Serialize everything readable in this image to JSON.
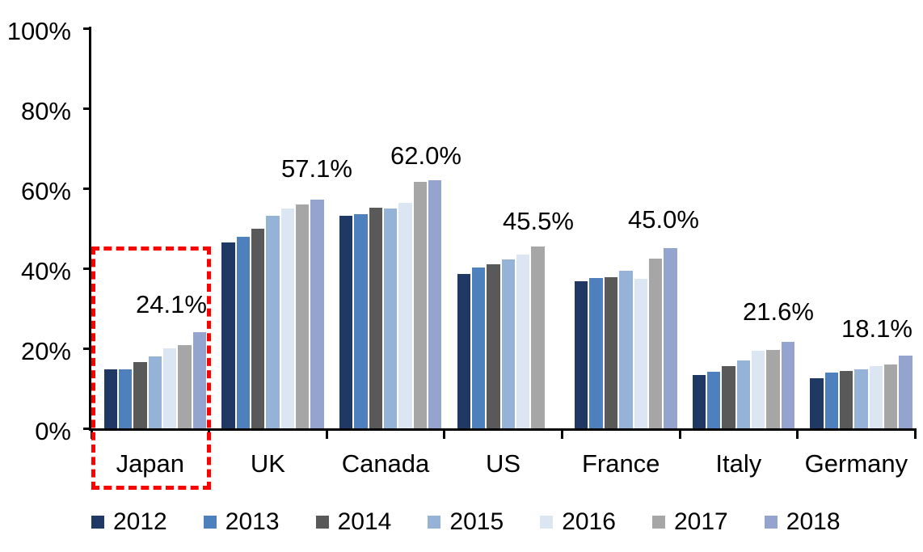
{
  "chart_data": {
    "type": "bar",
    "title": "",
    "xlabel": "",
    "ylabel": "",
    "categories": [
      "Japan",
      "UK",
      "Canada",
      "US",
      "France",
      "Italy",
      "Germany"
    ],
    "series": [
      {
        "name": "2012",
        "color": "#1F3864",
        "values": [
          14.7,
          46.5,
          53.1,
          38.5,
          36.7,
          13.3,
          12.6
        ]
      },
      {
        "name": "2013",
        "color": "#4E80BD",
        "values": [
          14.8,
          47.9,
          53.5,
          40.2,
          37.6,
          14.2,
          13.9
        ]
      },
      {
        "name": "2014",
        "color": "#595959",
        "values": [
          16.5,
          49.9,
          55.1,
          41.1,
          37.7,
          15.6,
          14.3
        ]
      },
      {
        "name": "2015",
        "color": "#95B3D7",
        "values": [
          18.0,
          53.2,
          54.9,
          42.3,
          39.3,
          17.0,
          14.7
        ]
      },
      {
        "name": "2016",
        "color": "#DCE6F2",
        "values": [
          20.0,
          54.9,
          56.3,
          43.5,
          37.3,
          19.3,
          15.5
        ]
      },
      {
        "name": "2017",
        "color": "#A6A6A6",
        "values": [
          20.9,
          56.0,
          61.6,
          45.5,
          42.4,
          19.5,
          16.0
        ]
      },
      {
        "name": "2018",
        "color": "#95A4CE",
        "values": [
          24.1,
          57.1,
          62.0,
          null,
          45.0,
          21.6,
          18.1
        ]
      }
    ],
    "data_labels": [
      "24.1%",
      "57.1%",
      "62.0%",
      "45.5%",
      "45.0%",
      "21.6%",
      "18.1%"
    ],
    "y_axis": {
      "min": 0,
      "max": 100,
      "tick_values": [
        0,
        20,
        40,
        60,
        80,
        100
      ],
      "tick_labels": [
        "0%",
        "20%",
        "40%",
        "60%",
        "80%",
        "100%"
      ]
    },
    "legend": {
      "position": "bottom",
      "entries": [
        "2012",
        "2013",
        "2014",
        "2015",
        "2016",
        "2017",
        "2018"
      ]
    },
    "grid": false,
    "highlight": {
      "category": "Japan",
      "style": "dashed-rectangle",
      "color": "#FF0000"
    }
  }
}
